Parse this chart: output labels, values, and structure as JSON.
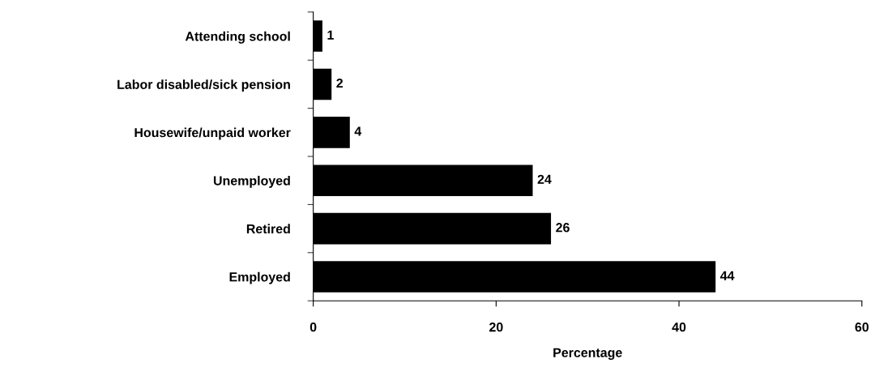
{
  "chart_data": {
    "type": "bar",
    "orientation": "horizontal",
    "xlabel": "Percentage",
    "categories": [
      "Attending school",
      "Labor disabled/sick pension",
      "Housewife/unpaid worker",
      "Unemployed",
      "Retired",
      "Employed"
    ],
    "values": [
      1,
      2,
      4,
      24,
      26,
      44
    ],
    "color": "#000000",
    "xlim": [
      0,
      60
    ],
    "xticks": [
      0,
      20,
      40,
      60
    ],
    "grid": false,
    "legend": false,
    "data_labels": true
  }
}
